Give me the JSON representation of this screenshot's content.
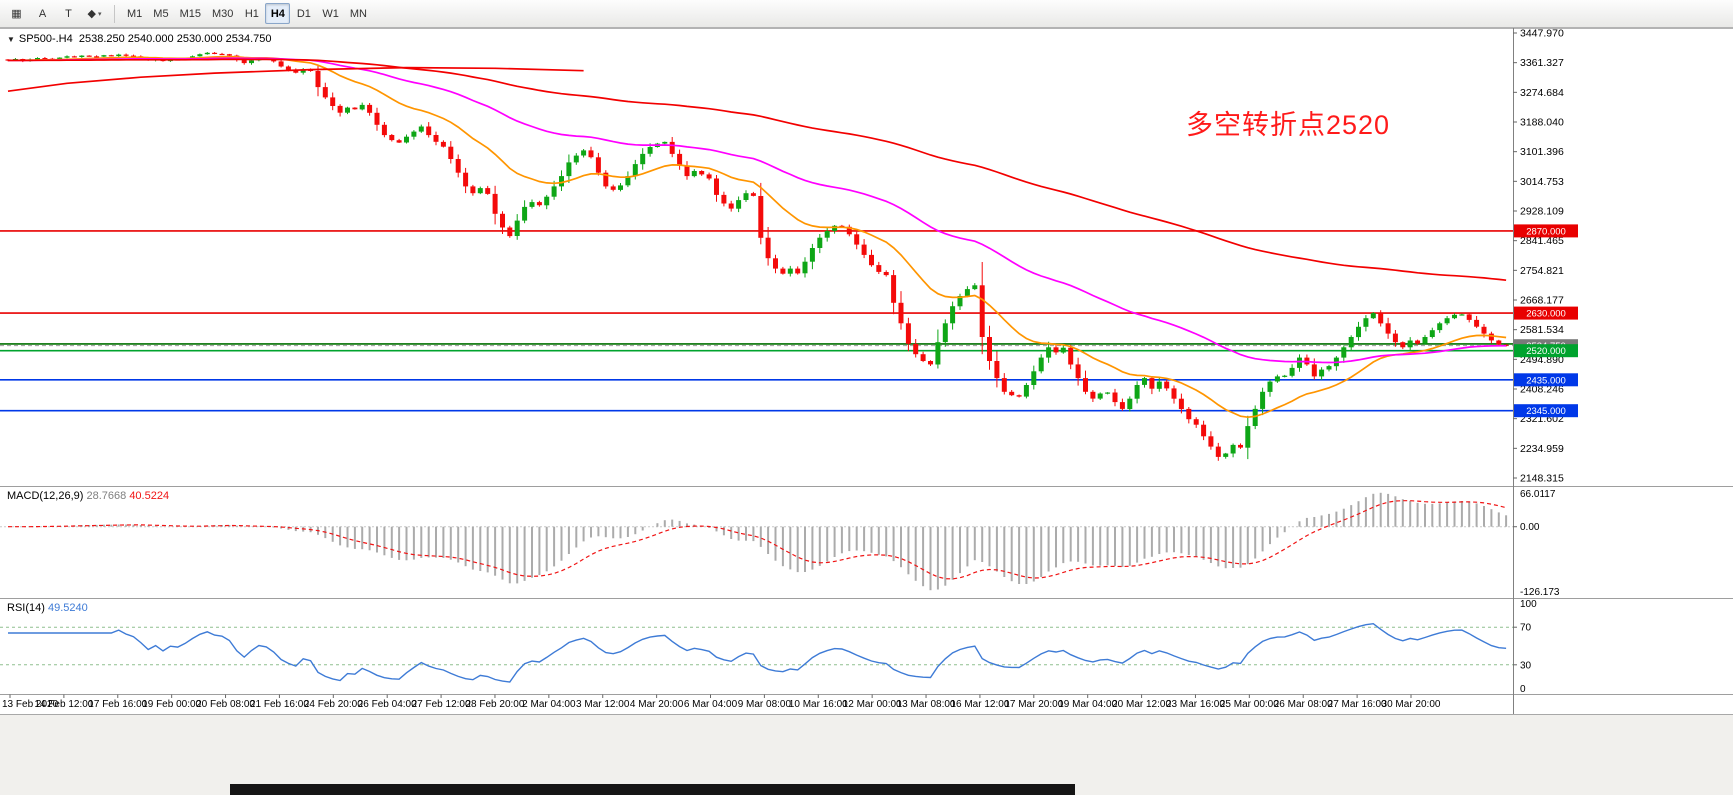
{
  "toolbar": {
    "tools": [
      {
        "name": "chart-window-tool",
        "glyph": "▦"
      },
      {
        "name": "arrow-annotation-tool",
        "glyph": "A"
      },
      {
        "name": "text-tool",
        "glyph": "T"
      },
      {
        "name": "shapes-tool",
        "glyph": "◆",
        "caret": "▾"
      }
    ],
    "timeframes": [
      "M1",
      "M5",
      "M15",
      "M30",
      "H1",
      "H4",
      "D1",
      "W1",
      "MN"
    ],
    "active_timeframe": "H4"
  },
  "chart_data": {
    "type": "candlestick",
    "symbol": "SP500-",
    "timeframe": "H4",
    "title_line": "SP500-.H4  2538.250 2540.000 2530.000 2534.750",
    "ohlc": {
      "open": 2538.25,
      "high": 2540.0,
      "low": 2530.0,
      "close": 2534.75
    },
    "y_range": [
      2148.315,
      3447.97
    ],
    "price_ticks": [
      "3447.970",
      "3361.327",
      "3274.684",
      "3188.040",
      "3101.396",
      "3014.753",
      "2928.109",
      "2841.465",
      "2754.821",
      "2668.177",
      "2581.534",
      "2494.890",
      "2408.246",
      "2321.602",
      "2234.959",
      "2148.315"
    ],
    "time_labels": [
      "13 Feb 2020",
      "14 Feb 12:00",
      "17 Feb 16:00",
      "19 Feb 00:00",
      "20 Feb 08:00",
      "21 Feb 16:00",
      "24 Feb 20:00",
      "26 Feb 04:00",
      "27 Feb 12:00",
      "28 Feb 20:00",
      "2 Mar 04:00",
      "3 Mar 12:00",
      "4 Mar 20:00",
      "6 Mar 04:00",
      "9 Mar 08:00",
      "10 Mar 16:00",
      "12 Mar 00:00",
      "13 Mar 08:00",
      "16 Mar 12:00",
      "17 Mar 20:00",
      "19 Mar 04:00",
      "20 Mar 12:00",
      "23 Mar 16:00",
      "25 Mar 00:00",
      "26 Mar 08:00",
      "27 Mar 16:00",
      "30 Mar 20:00"
    ],
    "closes": [
      3368,
      3372,
      3366,
      3371,
      3375,
      3373,
      3371,
      3376,
      3380,
      3378,
      3382,
      3380,
      3379,
      3383,
      3381,
      3385,
      3382,
      3380,
      3375,
      3368,
      3372,
      3366,
      3371,
      3370,
      3374,
      3380,
      3386,
      3390,
      3387,
      3386,
      3382,
      3370,
      3360,
      3368,
      3375,
      3373,
      3365,
      3350,
      3340,
      3332,
      3342,
      3337,
      3290,
      3260,
      3235,
      3215,
      3230,
      3225,
      3238,
      3215,
      3180,
      3150,
      3135,
      3128,
      3145,
      3160,
      3175,
      3150,
      3130,
      3116,
      3080,
      3040,
      3000,
      2980,
      2995,
      2978,
      2920,
      2880,
      2855,
      2900,
      2940,
      2954,
      2945,
      2970,
      3000,
      3030,
      3070,
      3090,
      3105,
      3085,
      3040,
      3000,
      2990,
      3003,
      3030,
      3065,
      3095,
      3115,
      3125,
      3130,
      3095,
      3060,
      3030,
      3045,
      3035,
      3023,
      2975,
      2950,
      2935,
      2960,
      2980,
      2972,
      2850,
      2790,
      2760,
      2745,
      2760,
      2746,
      2780,
      2820,
      2850,
      2870,
      2885,
      2882,
      2860,
      2830,
      2800,
      2770,
      2750,
      2741,
      2660,
      2600,
      2540,
      2510,
      2490,
      2480,
      2545,
      2600,
      2650,
      2680,
      2700,
      2711,
      2560,
      2490,
      2440,
      2400,
      2390,
      2386,
      2420,
      2460,
      2500,
      2530,
      2515,
      2529,
      2480,
      2440,
      2400,
      2380,
      2395,
      2398,
      2370,
      2350,
      2380,
      2420,
      2440,
      2409,
      2430,
      2410,
      2380,
      2350,
      2320,
      2304,
      2270,
      2240,
      2210,
      2220,
      2245,
      2237,
      2300,
      2350,
      2400,
      2430,
      2445,
      2447,
      2470,
      2500,
      2480,
      2445,
      2465,
      2475,
      2500,
      2530,
      2560,
      2590,
      2615,
      2630,
      2600,
      2570,
      2545,
      2530,
      2550,
      2541,
      2560,
      2580,
      2600,
      2615,
      2625,
      2626,
      2610,
      2590,
      2570,
      2550,
      2538,
      2534.75
    ],
    "horizontal_lines": [
      {
        "price": 2870,
        "label": "2870.000",
        "color": "#e80000"
      },
      {
        "price": 2630,
        "label": "2630.000",
        "color": "#e80000"
      },
      {
        "price": 2540,
        "label": null,
        "color": "#007000"
      },
      {
        "price": 2520,
        "label": "2520.000",
        "color": "#00a32e"
      },
      {
        "price": 2435,
        "label": "2435.000",
        "color": "#0038e8"
      },
      {
        "price": 2345,
        "label": "2345.000",
        "color": "#0038e8"
      }
    ],
    "bid_label": {
      "price": 2534.75,
      "label": "2534.750",
      "color": "#7a7a7a"
    },
    "moving_averages": [
      {
        "name": "fast-ma",
        "period": 20,
        "color": "#ff9500"
      },
      {
        "name": "mid-ma",
        "period": 60,
        "color": "#ff00ff"
      },
      {
        "name": "slow-ma",
        "period": 170,
        "color": "#f20000"
      }
    ],
    "extra_red_line": [
      [
        0,
        3278
      ],
      [
        8,
        3301
      ],
      [
        18,
        3319
      ],
      [
        28,
        3331
      ],
      [
        41,
        3341
      ],
      [
        54,
        3347
      ],
      [
        66,
        3345
      ],
      [
        78,
        3338
      ]
    ],
    "annotation": {
      "text": "多空转折点2520",
      "color": "#ff1a1a"
    },
    "indicators": {
      "macd": {
        "label": "MACD(12,26,9)",
        "value_main": "28.7668",
        "value_signal": "40.5224",
        "fast": 12,
        "slow": 26,
        "signal": 9,
        "scale_top": "66.0117",
        "scale_zero": "0.00",
        "scale_bottom": "-126.173"
      },
      "rsi": {
        "label": "RSI(14)",
        "value": "49.5240",
        "period": 14,
        "levels": [
          70,
          30
        ],
        "scale": [
          "100",
          "70",
          "30",
          "0"
        ]
      }
    },
    "colors": {
      "up": "#0ea616",
      "down": "#f40a0a",
      "macd_hist": "#ababab",
      "macd_signal": "#f01414",
      "rsi_line": "#3e7bd6",
      "rsi_levels": "#8fbf8f",
      "axis_text": "#000000"
    }
  }
}
